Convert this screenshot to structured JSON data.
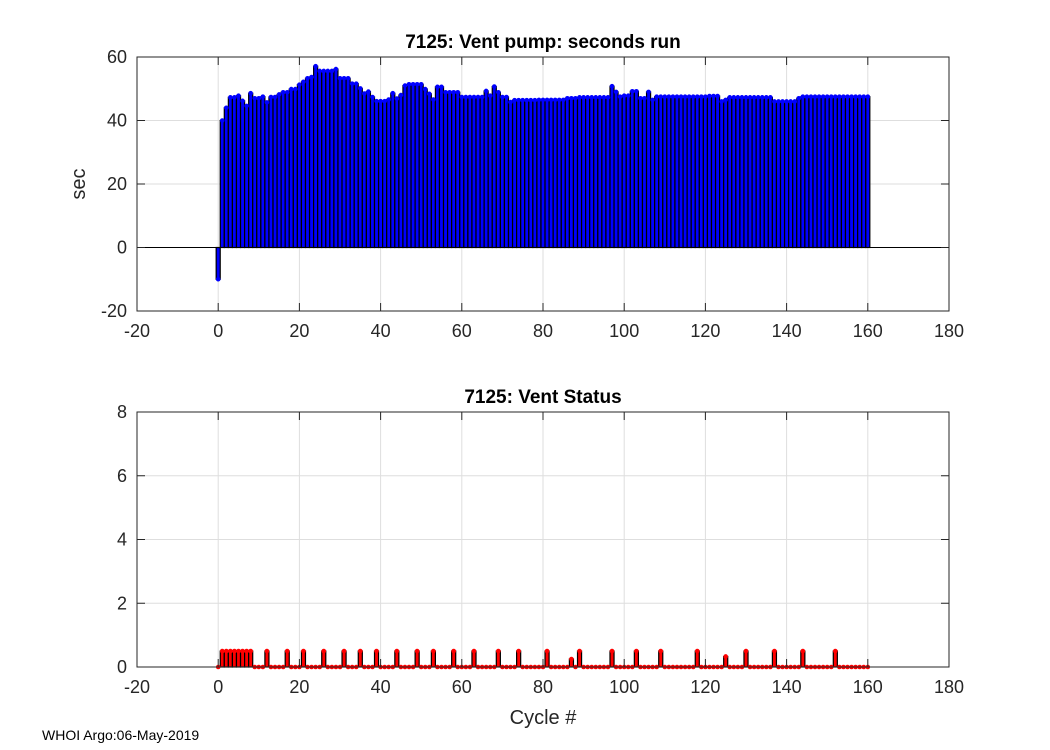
{
  "chart_data": [
    {
      "type": "bar",
      "title": "7125: Vent pump: seconds run",
      "xlabel": "",
      "ylabel": "sec",
      "xlim": [
        -20,
        180
      ],
      "ylim": [
        -20,
        60
      ],
      "xticks": [
        -20,
        0,
        20,
        40,
        60,
        80,
        100,
        120,
        140,
        160,
        180
      ],
      "yticks": [
        -20,
        0,
        20,
        40,
        60
      ],
      "grid": true,
      "color": "#0000ff",
      "x_start": 0,
      "values": [
        -10,
        40,
        44,
        47.3,
        47.3,
        47.8,
        46.2,
        44.6,
        48.6,
        47,
        47,
        47.5,
        45.7,
        47.4,
        47.4,
        48.2,
        48.9,
        48.9,
        49.9,
        49.9,
        51.3,
        52.2,
        53.3,
        53.7,
        57.1,
        55.6,
        55.6,
        55.6,
        55.6,
        56.2,
        53.3,
        53.3,
        53.3,
        51.6,
        51.6,
        50.1,
        48.5,
        49.1,
        47.4,
        46.1,
        46.1,
        46.1,
        46.6,
        48.6,
        46.9,
        48,
        51,
        51.4,
        51.4,
        51.4,
        51.4,
        49.9,
        48.4,
        46.6,
        50.6,
        50.6,
        48.9,
        48.9,
        48.9,
        48.9,
        47.4,
        47.4,
        47.4,
        47.4,
        47.4,
        47.4,
        49.3,
        47.8,
        50.7,
        48.9,
        47.4,
        47.4,
        45.8,
        46.4,
        46.4,
        46.4,
        46.4,
        46.4,
        46.4,
        46.5,
        46.5,
        46.5,
        46.5,
        46.5,
        46.5,
        46.5,
        47,
        47,
        47,
        47.3,
        47.3,
        47.3,
        47.3,
        47.3,
        47.3,
        47.3,
        47.3,
        50.8,
        49,
        47.5,
        47.8,
        47.8,
        49.2,
        49.2,
        47,
        47,
        49,
        46.5,
        47.5,
        47.5,
        47.5,
        47.5,
        47.5,
        47.5,
        47.5,
        47.5,
        47.5,
        47.5,
        47.5,
        47.5,
        47.5,
        47.7,
        47.7,
        47.7,
        46,
        46.5,
        47.3,
        47.3,
        47.3,
        47.3,
        47.3,
        47.3,
        47.3,
        47.3,
        47.3,
        47.3,
        47.3,
        46,
        46,
        46,
        46,
        46,
        46,
        47,
        47.5,
        47.5,
        47.5,
        47.5,
        47.5,
        47.5,
        47.5,
        47.5,
        47.5,
        47.5,
        47.5,
        47.5,
        47.5,
        47.5,
        47.5,
        47.5,
        47.5
      ]
    },
    {
      "type": "bar",
      "title": "7125: Vent Status",
      "xlabel": "Cycle #",
      "ylabel": "",
      "xlim": [
        -20,
        180
      ],
      "ylim": [
        0,
        8
      ],
      "xticks": [
        -20,
        0,
        20,
        40,
        60,
        80,
        100,
        120,
        140,
        160,
        180
      ],
      "yticks": [
        0,
        2,
        4,
        6,
        8
      ],
      "grid": true,
      "color": "#ff0000",
      "x_range": [
        0,
        160
      ],
      "default_value": 0,
      "nonzero": [
        [
          1,
          0.5
        ],
        [
          2,
          0.5
        ],
        [
          3,
          0.5
        ],
        [
          4,
          0.5
        ],
        [
          5,
          0.5
        ],
        [
          6,
          0.5
        ],
        [
          7,
          0.5
        ],
        [
          8,
          0.5
        ],
        [
          12,
          0.5
        ],
        [
          17,
          0.5
        ],
        [
          21,
          0.5
        ],
        [
          26,
          0.5
        ],
        [
          31,
          0.5
        ],
        [
          35,
          0.5
        ],
        [
          39,
          0.5
        ],
        [
          44,
          0.5
        ],
        [
          49,
          0.5
        ],
        [
          53,
          0.5
        ],
        [
          58,
          0.5
        ],
        [
          63,
          0.5
        ],
        [
          69,
          0.5
        ],
        [
          74,
          0.5
        ],
        [
          81,
          0.5
        ],
        [
          87,
          0.25
        ],
        [
          89,
          0.5
        ],
        [
          97,
          0.5
        ],
        [
          103,
          0.5
        ],
        [
          109,
          0.5
        ],
        [
          118,
          0.5
        ],
        [
          125,
          0.33
        ],
        [
          130,
          0.5
        ],
        [
          137,
          0.5
        ],
        [
          144,
          0.5
        ],
        [
          152,
          0.5
        ]
      ]
    }
  ],
  "footer": "WHOI Argo:06-May-2019"
}
